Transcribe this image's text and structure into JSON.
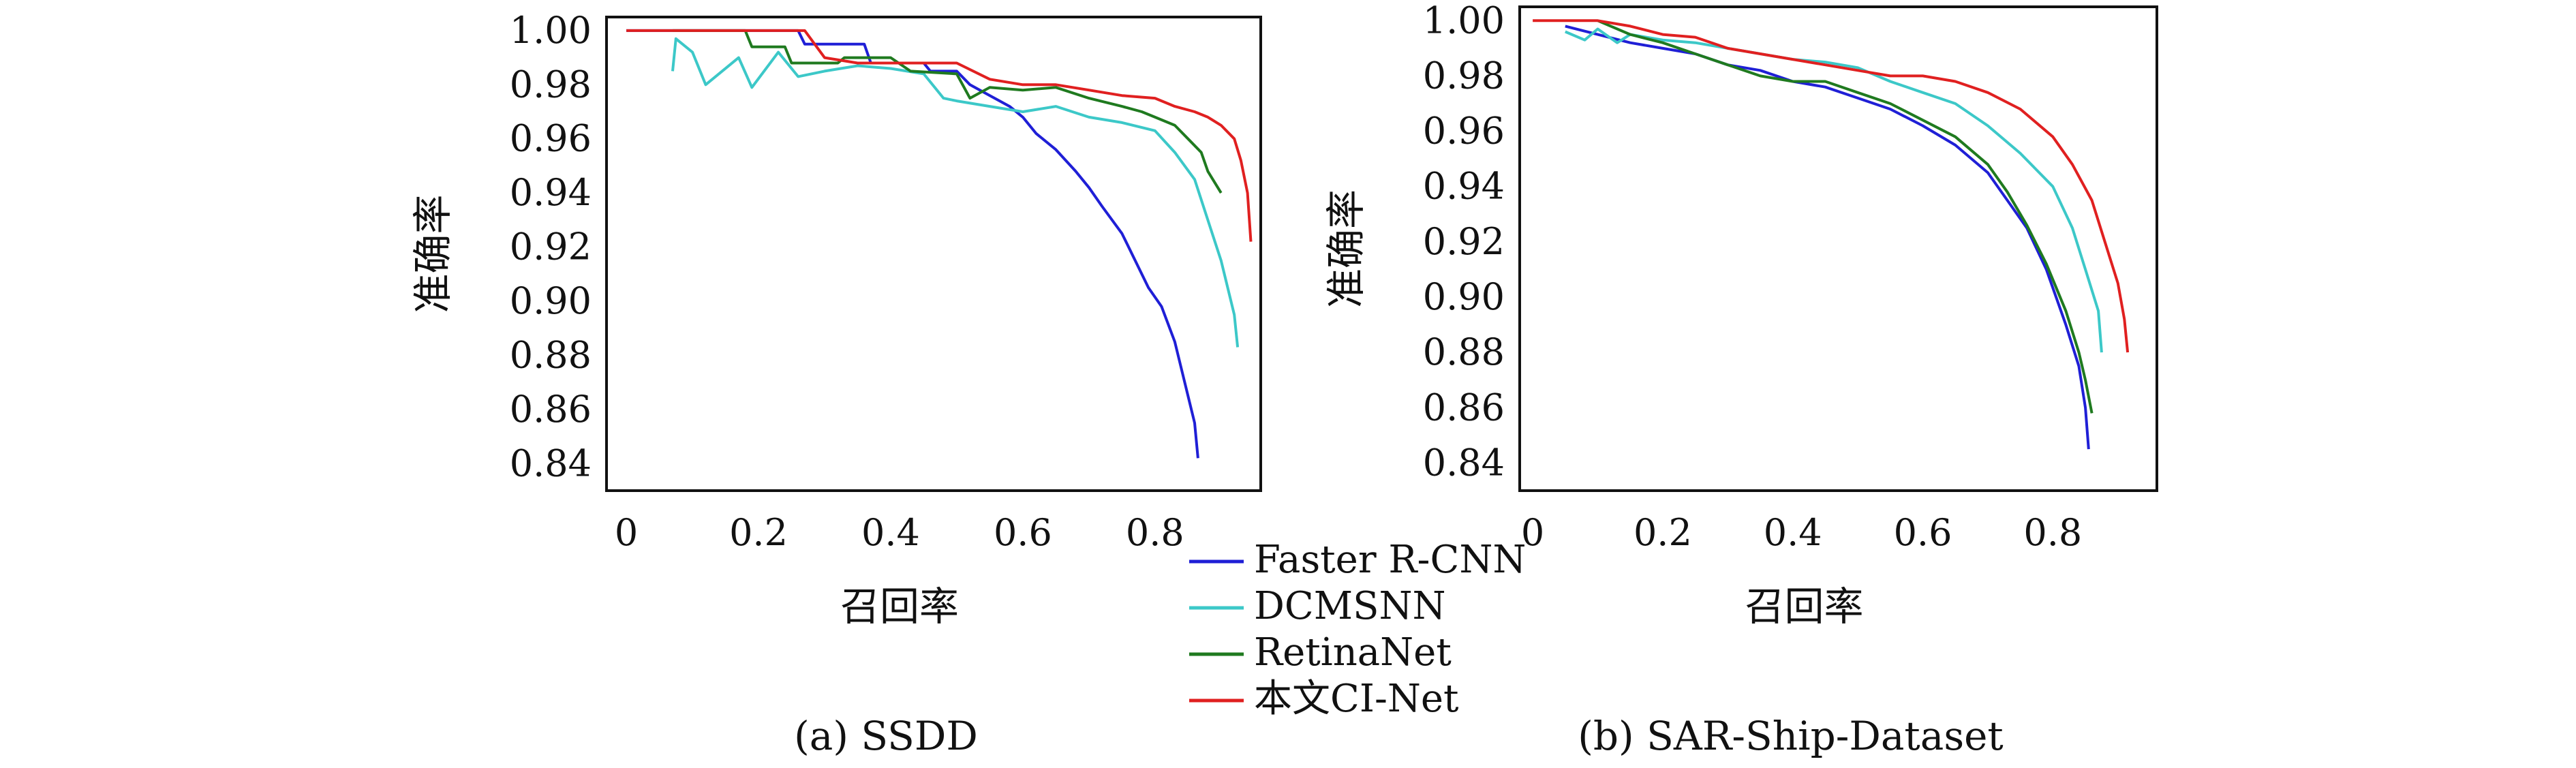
{
  "figure": {
    "legend": [
      "Faster R-CNN",
      "DCMSNN",
      "RetinaNet",
      "本文CI-Net"
    ],
    "colors": {
      "Faster R-CNN": "#1f1fd6",
      "DCMSNN": "#3cc8c8",
      "RetinaNet": "#1f7a1f",
      "本文CI-Net": "#e02020"
    }
  },
  "chart_data": [
    {
      "type": "line",
      "caption": "(a) SSDD",
      "xlabel": "召回率",
      "ylabel": "准确率",
      "xlim": [
        -0.03,
        0.96
      ],
      "ylim": [
        0.83,
        1.005
      ],
      "xticks": [
        "0",
        "0.2",
        "0.4",
        "0.6",
        "0.8"
      ],
      "xtick_values": [
        0,
        0.2,
        0.4,
        0.6,
        0.8
      ],
      "yticks": [
        "0.84",
        "0.86",
        "0.88",
        "0.90",
        "0.92",
        "0.94",
        "0.96",
        "0.98",
        "1.00"
      ],
      "ytick_values": [
        0.84,
        0.86,
        0.88,
        0.9,
        0.92,
        0.94,
        0.96,
        0.98,
        1.0
      ],
      "series": [
        {
          "name": "Faster R-CNN",
          "x": [
            0,
            0.26,
            0.27,
            0.36,
            0.37,
            0.45,
            0.46,
            0.5,
            0.52,
            0.55,
            0.58,
            0.6,
            0.62,
            0.65,
            0.68,
            0.7,
            0.72,
            0.75,
            0.77,
            0.79,
            0.81,
            0.83,
            0.84,
            0.85,
            0.86,
            0.865
          ],
          "y": [
            1.0,
            1.0,
            0.995,
            0.995,
            0.988,
            0.988,
            0.985,
            0.985,
            0.98,
            0.976,
            0.972,
            0.968,
            0.962,
            0.956,
            0.948,
            0.942,
            0.935,
            0.925,
            0.915,
            0.905,
            0.898,
            0.885,
            0.875,
            0.865,
            0.855,
            0.842
          ]
        },
        {
          "name": "DCMSNN",
          "x": [
            0.07,
            0.075,
            0.1,
            0.12,
            0.17,
            0.19,
            0.23,
            0.26,
            0.3,
            0.35,
            0.4,
            0.45,
            0.48,
            0.5,
            0.55,
            0.6,
            0.65,
            0.7,
            0.75,
            0.8,
            0.83,
            0.86,
            0.88,
            0.9,
            0.91,
            0.92,
            0.925
          ],
          "y": [
            0.985,
            0.997,
            0.992,
            0.98,
            0.99,
            0.979,
            0.992,
            0.983,
            0.985,
            0.987,
            0.986,
            0.984,
            0.975,
            0.974,
            0.972,
            0.97,
            0.972,
            0.968,
            0.966,
            0.963,
            0.955,
            0.945,
            0.93,
            0.915,
            0.905,
            0.895,
            0.883
          ]
        },
        {
          "name": "RetinaNet",
          "x": [
            0.07,
            0.18,
            0.19,
            0.24,
            0.25,
            0.32,
            0.33,
            0.4,
            0.43,
            0.5,
            0.52,
            0.55,
            0.6,
            0.65,
            0.7,
            0.75,
            0.78,
            0.8,
            0.83,
            0.85,
            0.87,
            0.88,
            0.9
          ],
          "y": [
            1.0,
            1.0,
            0.994,
            0.994,
            0.988,
            0.988,
            0.99,
            0.99,
            0.985,
            0.984,
            0.975,
            0.979,
            0.978,
            0.979,
            0.975,
            0.972,
            0.97,
            0.968,
            0.965,
            0.96,
            0.955,
            0.948,
            0.94
          ]
        },
        {
          "name": "本文CI-Net",
          "x": [
            0,
            0.27,
            0.3,
            0.35,
            0.4,
            0.45,
            0.5,
            0.55,
            0.6,
            0.65,
            0.7,
            0.75,
            0.8,
            0.83,
            0.86,
            0.88,
            0.9,
            0.92,
            0.93,
            0.94,
            0.945
          ],
          "y": [
            1.0,
            1.0,
            0.99,
            0.988,
            0.988,
            0.988,
            0.988,
            0.982,
            0.98,
            0.98,
            0.978,
            0.976,
            0.975,
            0.972,
            0.97,
            0.968,
            0.965,
            0.96,
            0.952,
            0.94,
            0.922
          ]
        }
      ]
    },
    {
      "type": "line",
      "caption": "(b) SAR-Ship-Dataset",
      "xlabel": "召回率",
      "ylabel": "准确率",
      "xlim": [
        -0.02,
        0.96
      ],
      "ylim": [
        0.83,
        1.005
      ],
      "xticks": [
        "0",
        "0.2",
        "0.4",
        "0.6",
        "0.8"
      ],
      "xtick_values": [
        0,
        0.2,
        0.4,
        0.6,
        0.8
      ],
      "yticks": [
        "0.84",
        "0.86",
        "0.88",
        "0.90",
        "0.92",
        "0.94",
        "0.96",
        "0.98",
        "1.00"
      ],
      "ytick_values": [
        0.84,
        0.86,
        0.88,
        0.9,
        0.92,
        0.94,
        0.96,
        0.98,
        1.0
      ],
      "series": [
        {
          "name": "Faster R-CNN",
          "x": [
            0.05,
            0.1,
            0.15,
            0.2,
            0.25,
            0.3,
            0.35,
            0.4,
            0.45,
            0.5,
            0.55,
            0.6,
            0.65,
            0.7,
            0.73,
            0.76,
            0.79,
            0.82,
            0.84,
            0.85,
            0.855
          ],
          "y": [
            0.998,
            0.995,
            0.992,
            0.99,
            0.988,
            0.984,
            0.982,
            0.978,
            0.976,
            0.972,
            0.968,
            0.962,
            0.955,
            0.945,
            0.935,
            0.925,
            0.91,
            0.89,
            0.875,
            0.86,
            0.845
          ]
        },
        {
          "name": "DCMSNN",
          "x": [
            0.05,
            0.08,
            0.1,
            0.13,
            0.15,
            0.2,
            0.25,
            0.3,
            0.35,
            0.4,
            0.45,
            0.5,
            0.55,
            0.6,
            0.65,
            0.7,
            0.75,
            0.8,
            0.83,
            0.85,
            0.87,
            0.875
          ],
          "y": [
            0.996,
            0.993,
            0.997,
            0.992,
            0.995,
            0.993,
            0.992,
            0.99,
            0.988,
            0.986,
            0.985,
            0.983,
            0.978,
            0.974,
            0.97,
            0.962,
            0.952,
            0.94,
            0.925,
            0.91,
            0.895,
            0.88
          ]
        },
        {
          "name": "RetinaNet",
          "x": [
            0.1,
            0.15,
            0.2,
            0.25,
            0.3,
            0.35,
            0.4,
            0.45,
            0.5,
            0.55,
            0.6,
            0.65,
            0.7,
            0.73,
            0.76,
            0.79,
            0.82,
            0.84,
            0.85,
            0.86
          ],
          "y": [
            1.0,
            0.995,
            0.992,
            0.988,
            0.984,
            0.98,
            0.978,
            0.978,
            0.974,
            0.97,
            0.964,
            0.958,
            0.948,
            0.938,
            0.926,
            0.912,
            0.895,
            0.88,
            0.87,
            0.858
          ]
        },
        {
          "name": "本文CI-Net",
          "x": [
            0,
            0.1,
            0.15,
            0.2,
            0.25,
            0.3,
            0.35,
            0.4,
            0.45,
            0.5,
            0.55,
            0.6,
            0.65,
            0.7,
            0.75,
            0.8,
            0.83,
            0.86,
            0.88,
            0.9,
            0.91,
            0.915
          ],
          "y": [
            1.0,
            1.0,
            0.998,
            0.995,
            0.994,
            0.99,
            0.988,
            0.986,
            0.984,
            0.982,
            0.98,
            0.98,
            0.978,
            0.974,
            0.968,
            0.958,
            0.948,
            0.935,
            0.92,
            0.905,
            0.892,
            0.88
          ]
        }
      ]
    }
  ]
}
